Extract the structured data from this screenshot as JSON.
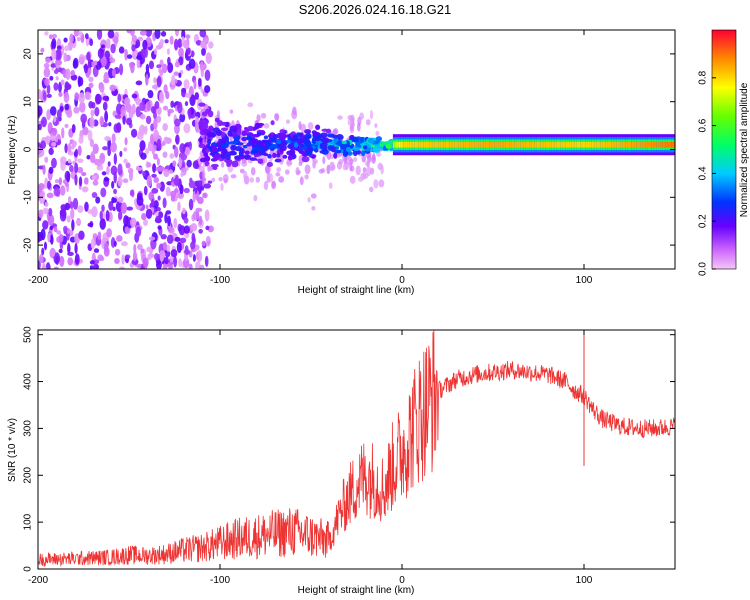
{
  "title": "S206.2026.024.16.18.G21",
  "chart_data": [
    {
      "type": "heatmap",
      "name": "spectrogram",
      "xlabel": "Height of straight line (km)",
      "ylabel": "Frequency (Hz)",
      "xlim": [
        -200,
        150
      ],
      "ylim": [
        -25,
        25
      ],
      "xticks": [
        -200,
        -100,
        0,
        100
      ],
      "yticks": [
        -20,
        -10,
        0,
        10,
        20
      ],
      "colorbar": {
        "label": "Normalized spectral amplitude",
        "range": [
          0,
          1
        ],
        "ticks": [
          0.0,
          0.2,
          0.4,
          0.6,
          0.8
        ]
      },
      "description_points": [
        {
          "x": -200,
          "freq_spread": 25,
          "amplitude": 0.1
        },
        {
          "x": -120,
          "freq_spread": 25,
          "amplitude": 0.1
        },
        {
          "x": -100,
          "freq_spread": 8,
          "amplitude": 0.3
        },
        {
          "x": -50,
          "freq_spread": 5,
          "amplitude": 0.35
        },
        {
          "x": -10,
          "freq_spread": 2,
          "amplitude": 0.6
        },
        {
          "x": 0,
          "freq_spread": 1.5,
          "amplitude": 0.8
        },
        {
          "x": 50,
          "freq_spread": 1.5,
          "amplitude": 0.85
        },
        {
          "x": 100,
          "freq_spread": 1.5,
          "amplitude": 0.8
        },
        {
          "x": 150,
          "freq_spread": 1.5,
          "amplitude": 0.9
        }
      ]
    },
    {
      "type": "line",
      "name": "snr",
      "xlabel": "Height of straight line (km)",
      "ylabel": "SNR (10 * v/v)",
      "xlim": [
        -200,
        150
      ],
      "ylim": [
        0,
        510
      ],
      "xticks": [
        -200,
        -100,
        0,
        100
      ],
      "yticks": [
        0,
        100,
        200,
        300,
        400,
        500
      ],
      "color": "#ee3333",
      "series": [
        {
          "name": "SNR",
          "x": [
            -200,
            -180,
            -160,
            -150,
            -140,
            -130,
            -120,
            -110,
            -100,
            -90,
            -80,
            -70,
            -60,
            -50,
            -40,
            -35,
            -30,
            -25,
            -20,
            -15,
            -10,
            -5,
            0,
            5,
            10,
            20,
            30,
            40,
            50,
            60,
            70,
            80,
            90,
            95,
            100,
            105,
            110,
            120,
            130,
            140,
            150
          ],
          "y": [
            20,
            22,
            25,
            30,
            28,
            32,
            40,
            45,
            55,
            65,
            70,
            75,
            80,
            70,
            60,
            110,
            150,
            180,
            200,
            190,
            170,
            220,
            250,
            290,
            330,
            380,
            405,
            415,
            420,
            425,
            420,
            415,
            400,
            380,
            370,
            340,
            320,
            305,
            300,
            300,
            305
          ]
        }
      ],
      "spikes": [
        {
          "x": 100,
          "y": 510
        },
        {
          "x": 100,
          "y": 220
        }
      ]
    }
  ]
}
